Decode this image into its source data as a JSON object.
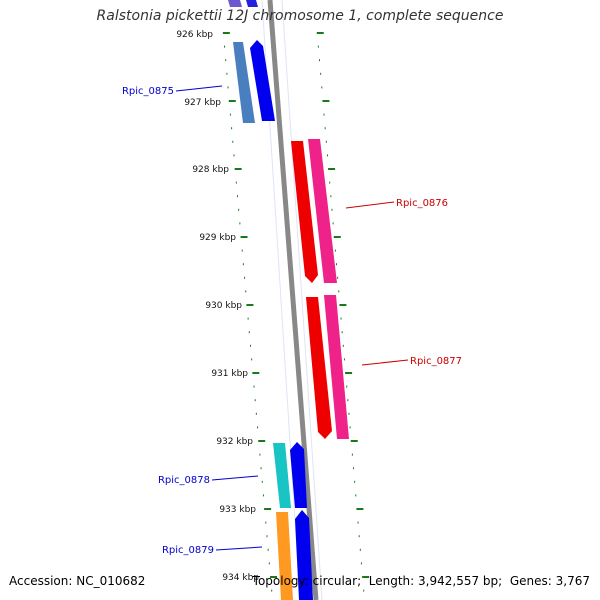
{
  "title": "Ralstonia pickettii 12J chromosome 1, complete sequence",
  "footer": {
    "accession_label": "Accession:",
    "accession": "NC_010682",
    "topology_label": "Topology:",
    "topology": "circular",
    "length_label": "Length:",
    "length": "3,942,557 bp",
    "genes_label": "Genes:",
    "genes": "3,767"
  },
  "scale": {
    "unit": "kbp",
    "ticks": [
      "926 kbp",
      "927 kbp",
      "928 kbp",
      "929 kbp",
      "930 kbp",
      "931 kbp",
      "932 kbp",
      "933 kbp",
      "934 kbp"
    ]
  },
  "genes": [
    {
      "label": "Rpic_0875",
      "strand": "minus",
      "color": "#0000cc"
    },
    {
      "label": "Rpic_0876",
      "strand": "plus",
      "color": "#cc0000"
    },
    {
      "label": "Rpic_0877",
      "strand": "plus",
      "color": "#cc0000"
    },
    {
      "label": "Rpic_0878",
      "strand": "minus",
      "color": "#0000cc"
    },
    {
      "label": "Rpic_0879",
      "strand": "minus",
      "color": "#0000cc"
    }
  ],
  "colors": {
    "backbone": "#808080",
    "ticks": "#1a7a1a",
    "minus_label": "#0000cc",
    "plus_label": "#cc0000"
  }
}
